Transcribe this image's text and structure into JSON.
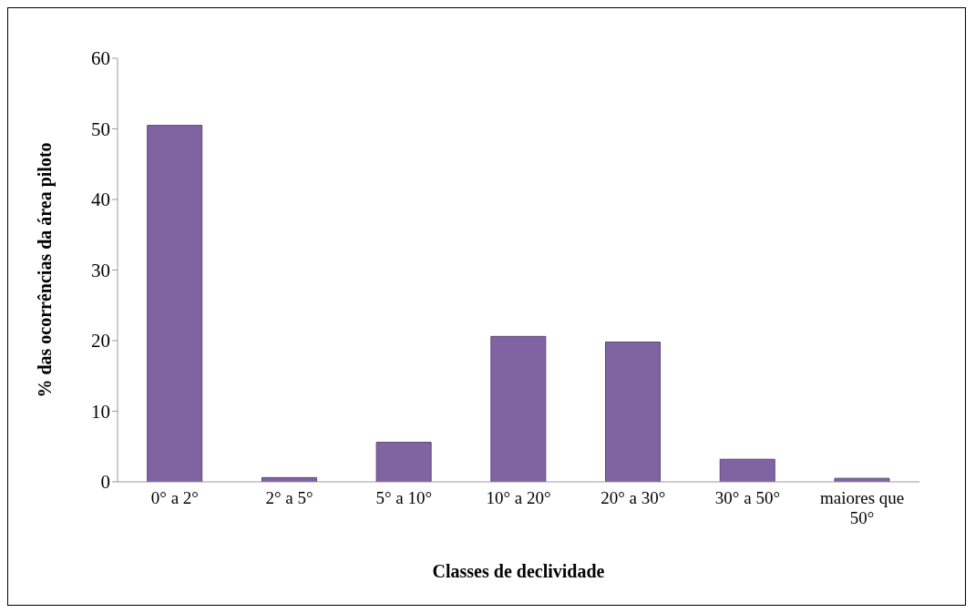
{
  "chart_data": {
    "type": "bar",
    "xlabel": "Classes de declividade",
    "ylabel": "% das ocorrências da área piloto",
    "categories": [
      "0° a 2°",
      "2° a 5°",
      "5° a 10°",
      "10° a 20°",
      "20° a 30°",
      "30° a 50°",
      "maiores que 50°"
    ],
    "values": [
      50.5,
      0.6,
      5.6,
      20.6,
      19.8,
      3.2,
      0.5
    ],
    "color": "#8064a2",
    "ylim": [
      0,
      60
    ],
    "yticks": [
      0,
      10,
      20,
      30,
      40,
      50,
      60
    ],
    "grid": false,
    "legend": false
  }
}
